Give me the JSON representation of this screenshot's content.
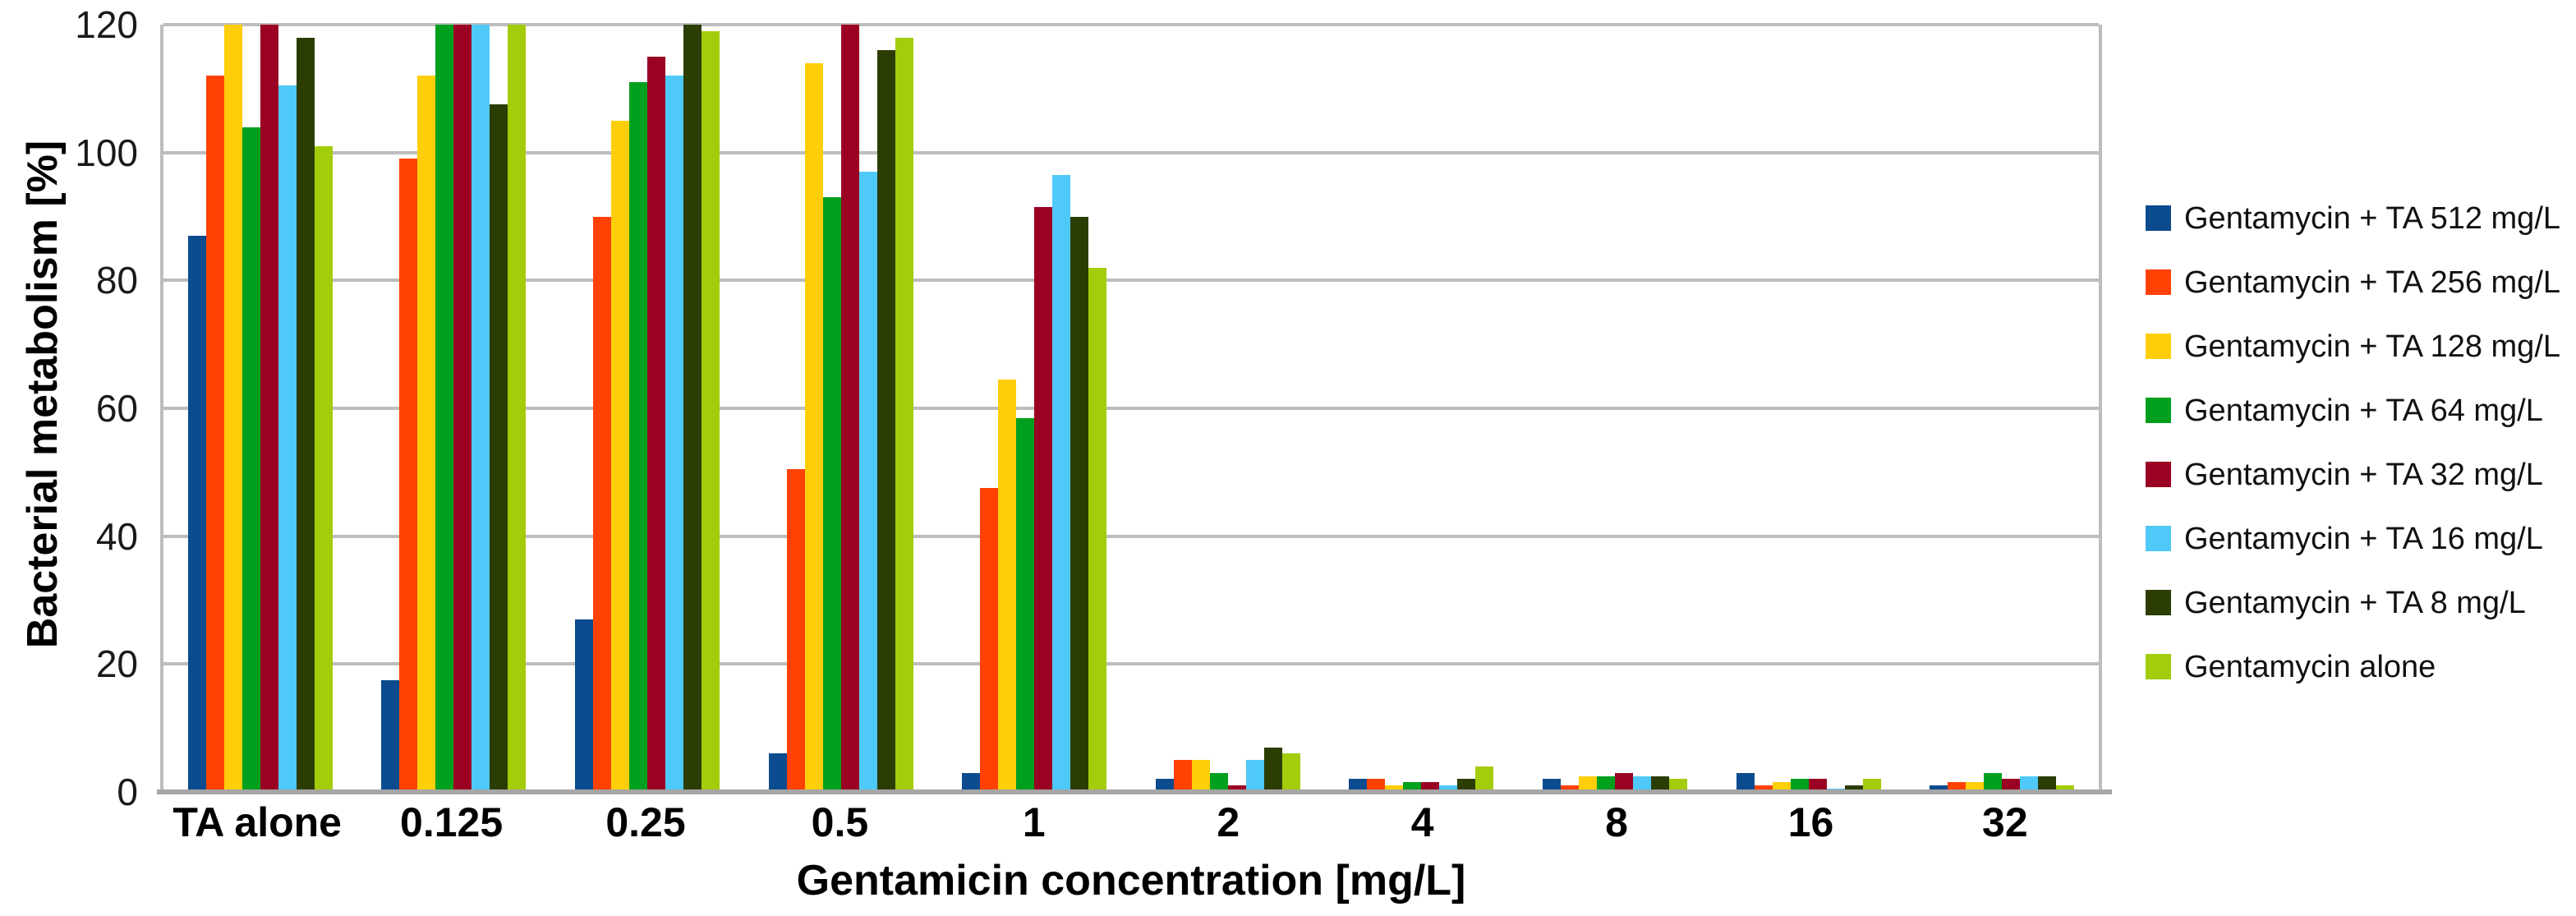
{
  "chart_data": {
    "type": "bar",
    "title": "",
    "xlabel": "Gentamicin concentration [mg/L]",
    "ylabel": "Bacterial metabolism [%]",
    "ylim": [
      0,
      120
    ],
    "yticks": [
      0,
      20,
      40,
      60,
      80,
      100,
      120
    ],
    "grid": "horizontal",
    "legend_position": "right",
    "note": "Values listed as 120 reach the axis maximum and are clipped at the top of the plot.",
    "categories": [
      "TA alone",
      "0.125",
      "0.25",
      "0.5",
      "1",
      "2",
      "4",
      "8",
      "16",
      "32"
    ],
    "series": [
      {
        "name": "Gentamycin + TA 512 mg/L",
        "color": "#0C4B8E",
        "values": [
          87,
          17.5,
          27,
          6,
          3,
          2,
          2,
          2,
          3,
          1
        ]
      },
      {
        "name": "Gentamycin + TA 256 mg/L",
        "color": "#FF4204",
        "values": [
          112,
          99,
          90,
          50.5,
          47.5,
          5,
          2,
          1,
          1,
          1.5
        ]
      },
      {
        "name": "Gentamycin + TA 128 mg/L",
        "color": "#FFCE0A",
        "values": [
          120,
          112,
          105,
          114,
          64.5,
          5,
          1,
          2.5,
          1.5,
          1.5
        ]
      },
      {
        "name": "Gentamycin + TA 64 mg/L",
        "color": "#009F1E",
        "values": [
          104,
          120,
          111,
          93,
          58.5,
          3,
          1.5,
          2.5,
          2,
          3
        ]
      },
      {
        "name": "Gentamycin + TA 32 mg/L",
        "color": "#9B0123",
        "values": [
          120,
          120,
          115,
          120,
          91.5,
          1,
          1.5,
          3,
          2,
          2
        ]
      },
      {
        "name": "Gentamycin + TA 16 mg/L",
        "color": "#4FC9F8",
        "values": [
          110.5,
          120,
          112,
          97,
          96.5,
          5,
          1,
          2.5,
          0.5,
          2.5
        ]
      },
      {
        "name": "Gentamycin + TA 8 mg/L",
        "color": "#2C3D04",
        "values": [
          118,
          107.5,
          120,
          116,
          90,
          7,
          2,
          2.5,
          1,
          2.5
        ]
      },
      {
        "name": "Gentamycin alone",
        "color": "#A3CC0A",
        "values": [
          101,
          120,
          119,
          118,
          82,
          6,
          4,
          2,
          2,
          1
        ]
      }
    ],
    "colors": {
      "gridline": "#BDBDBD",
      "axis_line": "#A6A6A6",
      "background": "#FFFFFF"
    }
  }
}
